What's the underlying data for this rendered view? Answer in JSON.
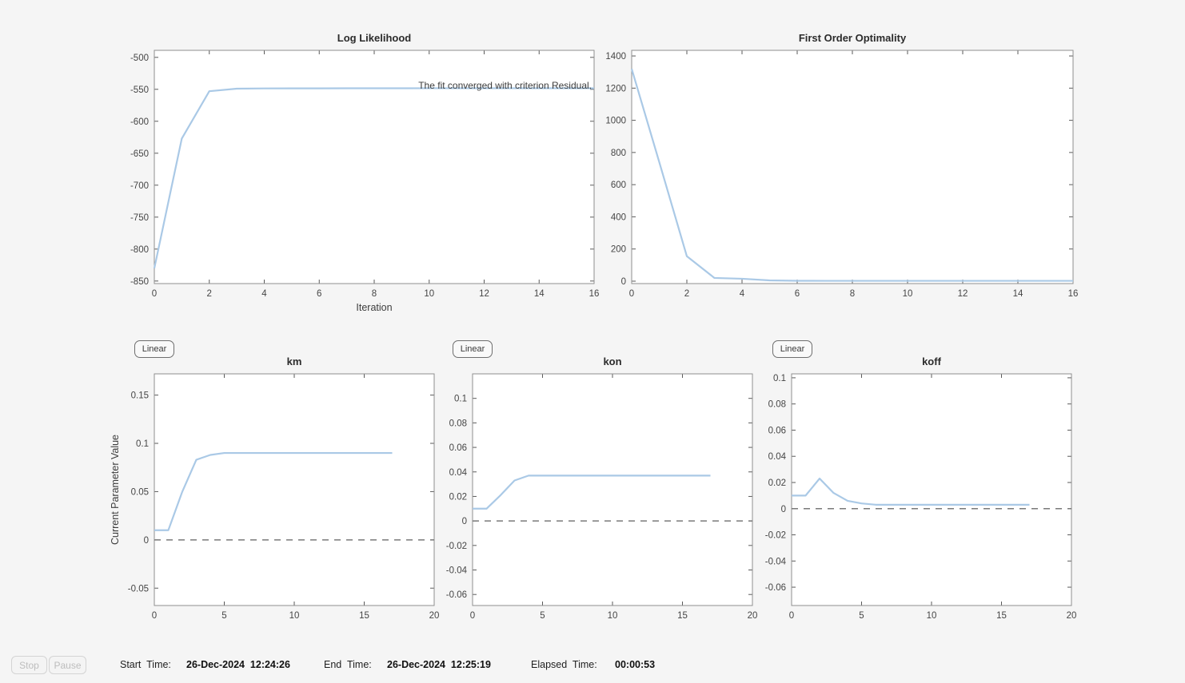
{
  "colors": {
    "background": "#f5f5f5",
    "plot_bg": "#ffffff",
    "line": "#aac9e6",
    "dashed": "#7a7a7a",
    "axis": "#8f8f8f",
    "tick": "#5a5a5a",
    "tick_label": "#454545",
    "title": "#2b2b2b"
  },
  "buttons": {
    "linear": "Linear",
    "stop": "Stop",
    "pause": "Pause"
  },
  "status": {
    "start_time_label": "Start  Time:",
    "start_time_value": "26-Dec-2024  12:24:26",
    "end_time_label": "End  Time:",
    "end_time_value": "26-Dec-2024  12:25:19",
    "elapsed_time_label": "Elapsed  Time:",
    "elapsed_time_value": "00:00:53"
  },
  "chart_data": [
    {
      "id": "log_likelihood",
      "type": "line",
      "title": "Log Likelihood",
      "xlabel": "Iteration",
      "ylabel": "",
      "xlim": [
        0,
        16
      ],
      "ylim": [
        -854,
        -489
      ],
      "xticks": [
        0,
        2,
        4,
        6,
        8,
        10,
        12,
        14,
        16
      ],
      "yticks": [
        -850,
        -800,
        -750,
        -700,
        -650,
        -600,
        -550,
        -500
      ],
      "x": [
        0,
        1,
        2,
        3,
        4,
        5,
        6,
        7,
        8,
        9,
        10,
        11,
        12,
        13,
        14,
        15,
        16
      ],
      "y": [
        -830,
        -627,
        -553,
        -549,
        -548.6,
        -548.5,
        -548.5,
        -548.4,
        -548.4,
        -548.4,
        -548.3,
        -548.3,
        -548.3,
        -548.3,
        -548.3,
        -548.3,
        -548.3
      ],
      "zero_dashed": false,
      "annotation": "The fit converged with criterion Residual.",
      "grid": false,
      "legend": null
    },
    {
      "id": "first_order_optimality",
      "type": "line",
      "title": "First Order Optimality",
      "xlabel": "",
      "ylabel": "",
      "xlim": [
        0,
        16
      ],
      "ylim": [
        -15,
        1435
      ],
      "xticks": [
        0,
        2,
        4,
        6,
        8,
        10,
        12,
        14,
        16
      ],
      "yticks": [
        0,
        200,
        400,
        600,
        800,
        1000,
        1200,
        1400
      ],
      "x": [
        0,
        1,
        2,
        3,
        4,
        5,
        6,
        7,
        8,
        9,
        10,
        11,
        12,
        13,
        14,
        15,
        16
      ],
      "y": [
        1320,
        740,
        155,
        20,
        15,
        5,
        2.5,
        2,
        2,
        2,
        2,
        2,
        2,
        2,
        2,
        2,
        2
      ],
      "zero_dashed": false,
      "annotation": null,
      "grid": false,
      "legend": null
    },
    {
      "id": "km",
      "type": "line",
      "title": "km",
      "xlabel": "",
      "ylabel": "Current Parameter Value",
      "xlim": [
        0,
        20
      ],
      "ylim": [
        -0.068,
        0.172
      ],
      "xticks": [
        0,
        5,
        10,
        15,
        20
      ],
      "yticks": [
        -0.05,
        0,
        0.05,
        0.1,
        0.15
      ],
      "x": [
        0,
        1,
        2,
        3,
        4,
        5,
        6,
        7,
        8,
        9,
        10,
        11,
        12,
        13,
        14,
        15,
        16,
        17
      ],
      "y": [
        0.01,
        0.01,
        0.05,
        0.083,
        0.088,
        0.09,
        0.09,
        0.09,
        0.09,
        0.09,
        0.09,
        0.09,
        0.09,
        0.09,
        0.09,
        0.09,
        0.09,
        0.09
      ],
      "zero_dashed": true,
      "annotation": null,
      "grid": false,
      "legend": null
    },
    {
      "id": "kon",
      "type": "line",
      "title": "kon",
      "xlabel": "",
      "ylabel": "",
      "xlim": [
        0,
        20
      ],
      "ylim": [
        -0.069,
        0.12
      ],
      "xticks": [
        0,
        5,
        10,
        15,
        20
      ],
      "yticks": [
        -0.06,
        -0.04,
        -0.02,
        0,
        0.02,
        0.04,
        0.06,
        0.08,
        0.1
      ],
      "x": [
        0,
        1,
        2,
        3,
        4,
        5,
        6,
        7,
        8,
        9,
        10,
        11,
        12,
        13,
        14,
        15,
        16,
        17
      ],
      "y": [
        0.01,
        0.01,
        0.021,
        0.033,
        0.037,
        0.037,
        0.037,
        0.037,
        0.037,
        0.037,
        0.037,
        0.037,
        0.037,
        0.037,
        0.037,
        0.037,
        0.037,
        0.037
      ],
      "zero_dashed": true,
      "annotation": null,
      "grid": false,
      "legend": null
    },
    {
      "id": "koff",
      "type": "line",
      "title": "koff",
      "xlabel": "",
      "ylabel": "",
      "xlim": [
        0,
        20
      ],
      "ylim": [
        -0.074,
        0.103
      ],
      "xticks": [
        0,
        5,
        10,
        15,
        20
      ],
      "yticks": [
        -0.06,
        -0.04,
        -0.02,
        0,
        0.02,
        0.04,
        0.06,
        0.08,
        0.1
      ],
      "x": [
        0,
        1,
        2,
        3,
        4,
        5,
        6,
        7,
        8,
        9,
        10,
        11,
        12,
        13,
        14,
        15,
        16,
        17
      ],
      "y": [
        0.01,
        0.01,
        0.023,
        0.012,
        0.006,
        0.004,
        0.003,
        0.003,
        0.003,
        0.003,
        0.003,
        0.003,
        0.003,
        0.003,
        0.003,
        0.003,
        0.003,
        0.003
      ],
      "zero_dashed": true,
      "annotation": null,
      "grid": false,
      "legend": null
    }
  ]
}
